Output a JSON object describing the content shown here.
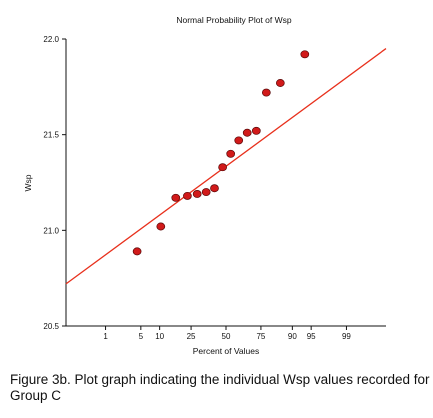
{
  "caption": "Figure 3b. Plot graph indicating the individual Wsp values recorded for Group C",
  "chart_data": {
    "type": "scatter",
    "title": "Normal Probability Plot of Wsp",
    "xlabel": "Percent of Values",
    "ylabel": "Wsp",
    "x_scale": "normal-probability",
    "x_ticks": [
      1,
      5,
      10,
      25,
      50,
      75,
      90,
      95,
      99
    ],
    "x_tick_labels": [
      "1",
      "5",
      "10",
      "25",
      "50",
      "75",
      "90",
      "95",
      "99"
    ],
    "y_ticks": [
      20.5,
      21.0,
      21.5,
      22.0
    ],
    "y_tick_labels": [
      "20.5",
      "21.0",
      "21.5",
      "22.0"
    ],
    "ylim": [
      20.5,
      22.0
    ],
    "xlim": [
      0.1,
      99.9
    ],
    "grid": false,
    "point_color": "#d11a1a",
    "line_color": "#e8301c",
    "points": [
      {
        "x": 4.3,
        "y": 20.89
      },
      {
        "x": 10.4,
        "y": 21.02
      },
      {
        "x": 16.6,
        "y": 21.17
      },
      {
        "x": 22.8,
        "y": 21.18
      },
      {
        "x": 28.9,
        "y": 21.19
      },
      {
        "x": 35.1,
        "y": 21.2
      },
      {
        "x": 41.2,
        "y": 21.22
      },
      {
        "x": 47.4,
        "y": 21.33
      },
      {
        "x": 53.6,
        "y": 21.4
      },
      {
        "x": 59.7,
        "y": 21.47
      },
      {
        "x": 65.9,
        "y": 21.51
      },
      {
        "x": 72.1,
        "y": 21.52
      },
      {
        "x": 78.2,
        "y": 21.72
      },
      {
        "x": 85.3,
        "y": 21.77
      },
      {
        "x": 93.6,
        "y": 21.92
      }
    ],
    "fit_line": {
      "x": [
        0.1,
        99.9
      ],
      "y": [
        20.72,
        21.95
      ]
    }
  }
}
